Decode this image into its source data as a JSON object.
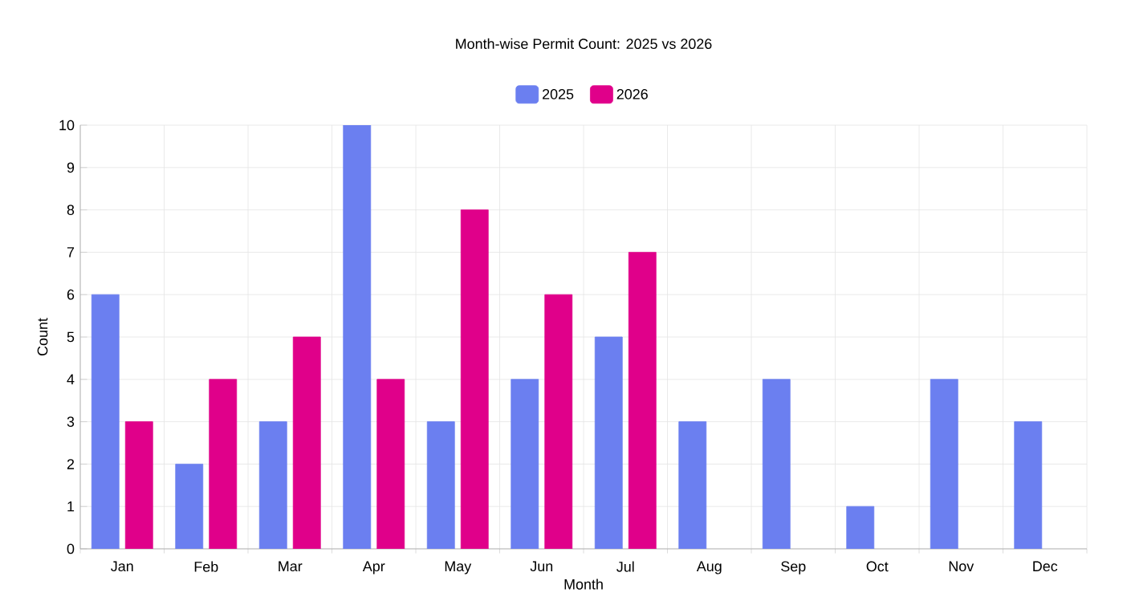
{
  "chart_data": {
    "type": "bar",
    "title": "Month-wise Permit Count: 2025 vs 2026",
    "xlabel": "Month",
    "ylabel": "Count",
    "categories": [
      "Jan",
      "Feb",
      "Mar",
      "Apr",
      "May",
      "Jun",
      "Jul",
      "Aug",
      "Sep",
      "Oct",
      "Nov",
      "Dec"
    ],
    "series": [
      {
        "name": "2025",
        "color": "#6b7ff0",
        "values": [
          6,
          2,
          3,
          10,
          3,
          4,
          5,
          3,
          4,
          1,
          4,
          3
        ]
      },
      {
        "name": "2026",
        "color": "#e0008a",
        "values": [
          3,
          4,
          5,
          4,
          8,
          6,
          7,
          null,
          null,
          null,
          null,
          null
        ]
      }
    ],
    "ylim": [
      0,
      10
    ],
    "yticks": [
      0,
      1,
      2,
      3,
      4,
      5,
      6,
      7,
      8,
      9,
      10
    ],
    "grid": true,
    "legend": "top"
  }
}
